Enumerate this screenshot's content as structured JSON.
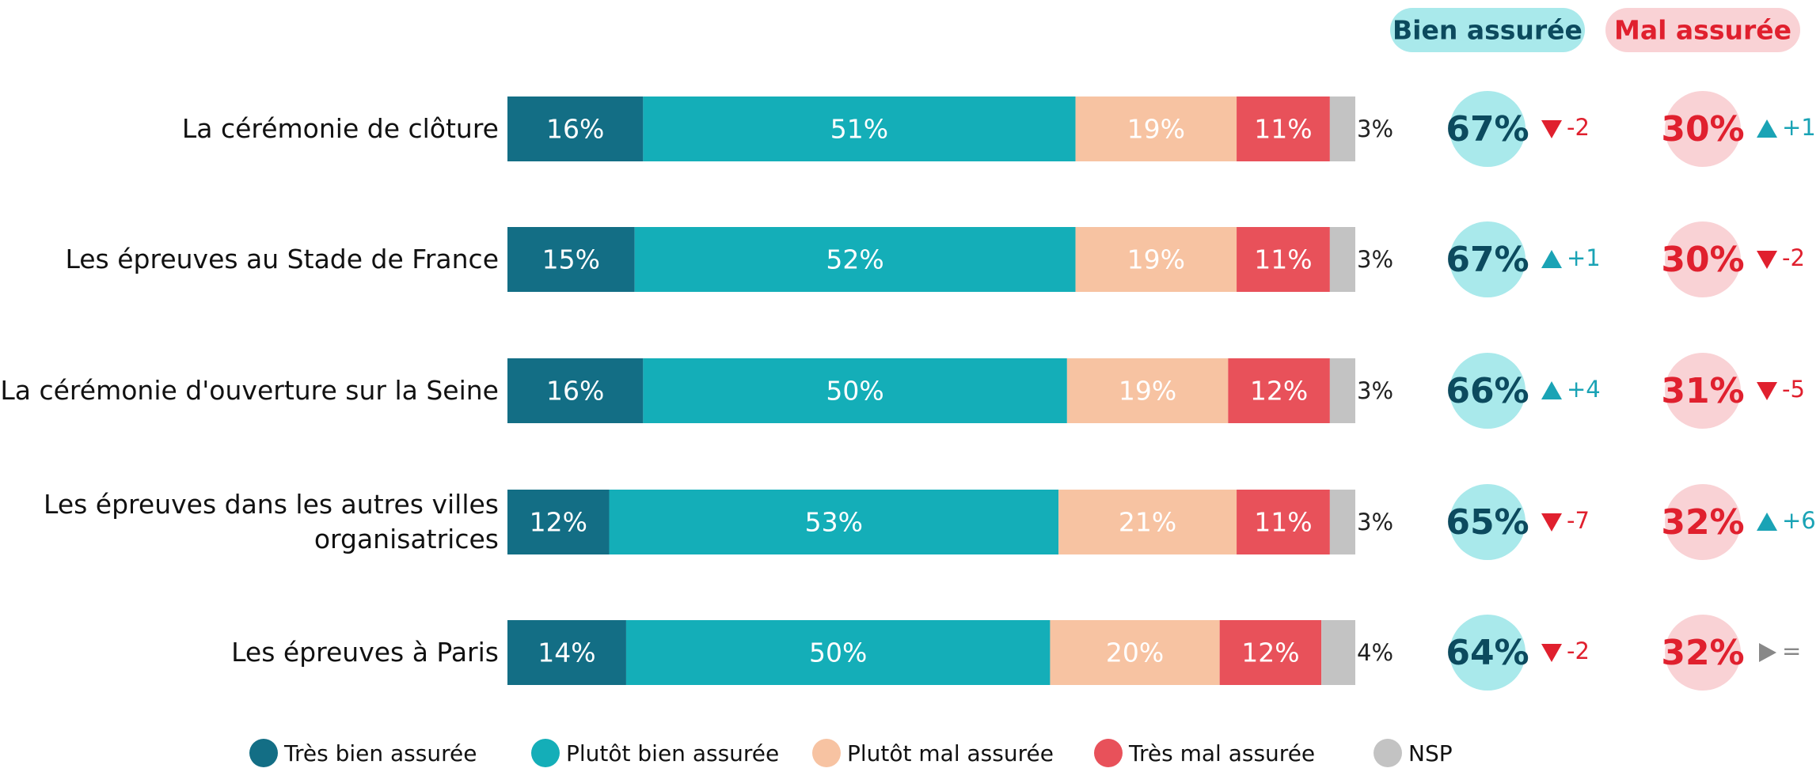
{
  "chart_data": {
    "type": "bar",
    "orientation": "horizontal",
    "stacked": true,
    "xlim": [
      0,
      100
    ],
    "categories": [
      "La cérémonie de clôture",
      "Les épreuves au Stade de France",
      "La cérémonie d'ouverture sur la Seine",
      "Les épreuves dans les autres villes organisatrices",
      "Les épreuves à Paris"
    ],
    "series": [
      {
        "name": "Très bien assurée",
        "color": "#136e85",
        "label_color": "#ffffff",
        "values": [
          16,
          15,
          16,
          12,
          14
        ],
        "value_labels": [
          "16%",
          "15%",
          "16%",
          "12%",
          "14%"
        ]
      },
      {
        "name": "Plutôt bien assurée",
        "color": "#14aeb8",
        "label_color": "#ffffff",
        "values": [
          51,
          52,
          50,
          53,
          50
        ],
        "value_labels": [
          "51%",
          "52%",
          "50%",
          "53%",
          "50%"
        ]
      },
      {
        "name": "Plutôt mal assurée",
        "color": "#f7c3a2",
        "label_color": "#ffffff",
        "values": [
          19,
          19,
          19,
          21,
          20
        ],
        "value_labels": [
          "19%",
          "19%",
          "19%",
          "21%",
          "20%"
        ]
      },
      {
        "name": "Très mal assurée",
        "color": "#e8515a",
        "label_color": "#ffffff",
        "values": [
          11,
          11,
          12,
          11,
          12
        ],
        "value_labels": [
          "11%",
          "11%",
          "12%",
          "11%",
          "12%"
        ]
      },
      {
        "name": "NSP",
        "color": "#c3c3c3",
        "label_color": "#222222",
        "label_outside": true,
        "values": [
          3,
          3,
          3,
          3,
          4
        ],
        "value_labels": [
          "3%",
          "3%",
          "3%",
          "3%",
          "4%"
        ]
      }
    ],
    "summaries": [
      {
        "title": "Bien assurée",
        "pill_color": "#a9e9eb",
        "text_color": "#0c4a5e",
        "values": [
          67,
          67,
          66,
          65,
          64
        ],
        "value_labels": [
          "67%",
          "67%",
          "66%",
          "65%",
          "64%"
        ],
        "changes": [
          -2,
          1,
          4,
          -7,
          -2
        ],
        "change_labels": [
          "-2",
          "+1",
          "+4",
          "-7",
          "-2"
        ]
      },
      {
        "title": "Mal assurée",
        "pill_color": "#f9d2d5",
        "text_color": "#e0202e",
        "values": [
          30,
          30,
          31,
          32,
          32
        ],
        "value_labels": [
          "30%",
          "30%",
          "31%",
          "32%",
          "32%"
        ],
        "changes": [
          1,
          -2,
          -5,
          6,
          0
        ],
        "change_labels": [
          "+1",
          "-2",
          "-5",
          "+6",
          "="
        ]
      }
    ]
  }
}
